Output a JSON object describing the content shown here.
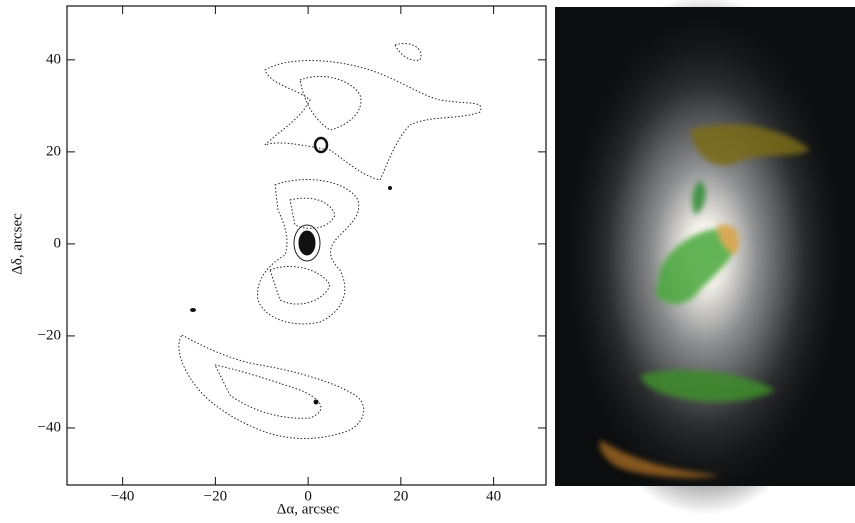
{
  "chart_data": {
    "type": "contour",
    "x_label": "Δα, arcsec",
    "y_label": "Δδ, arcsec",
    "xlim": [
      -52,
      51.3
    ],
    "ylim": [
      -52.4,
      51.7
    ],
    "xticks": [
      {
        "value": -40,
        "label": "−40"
      },
      {
        "value": -20,
        "label": "−20"
      },
      0,
      20,
      40
    ],
    "yticks": [
      {
        "value": -40,
        "label": "−40"
      },
      {
        "value": -20,
        "label": "−20"
      },
      0,
      20,
      40
    ]
  }
}
